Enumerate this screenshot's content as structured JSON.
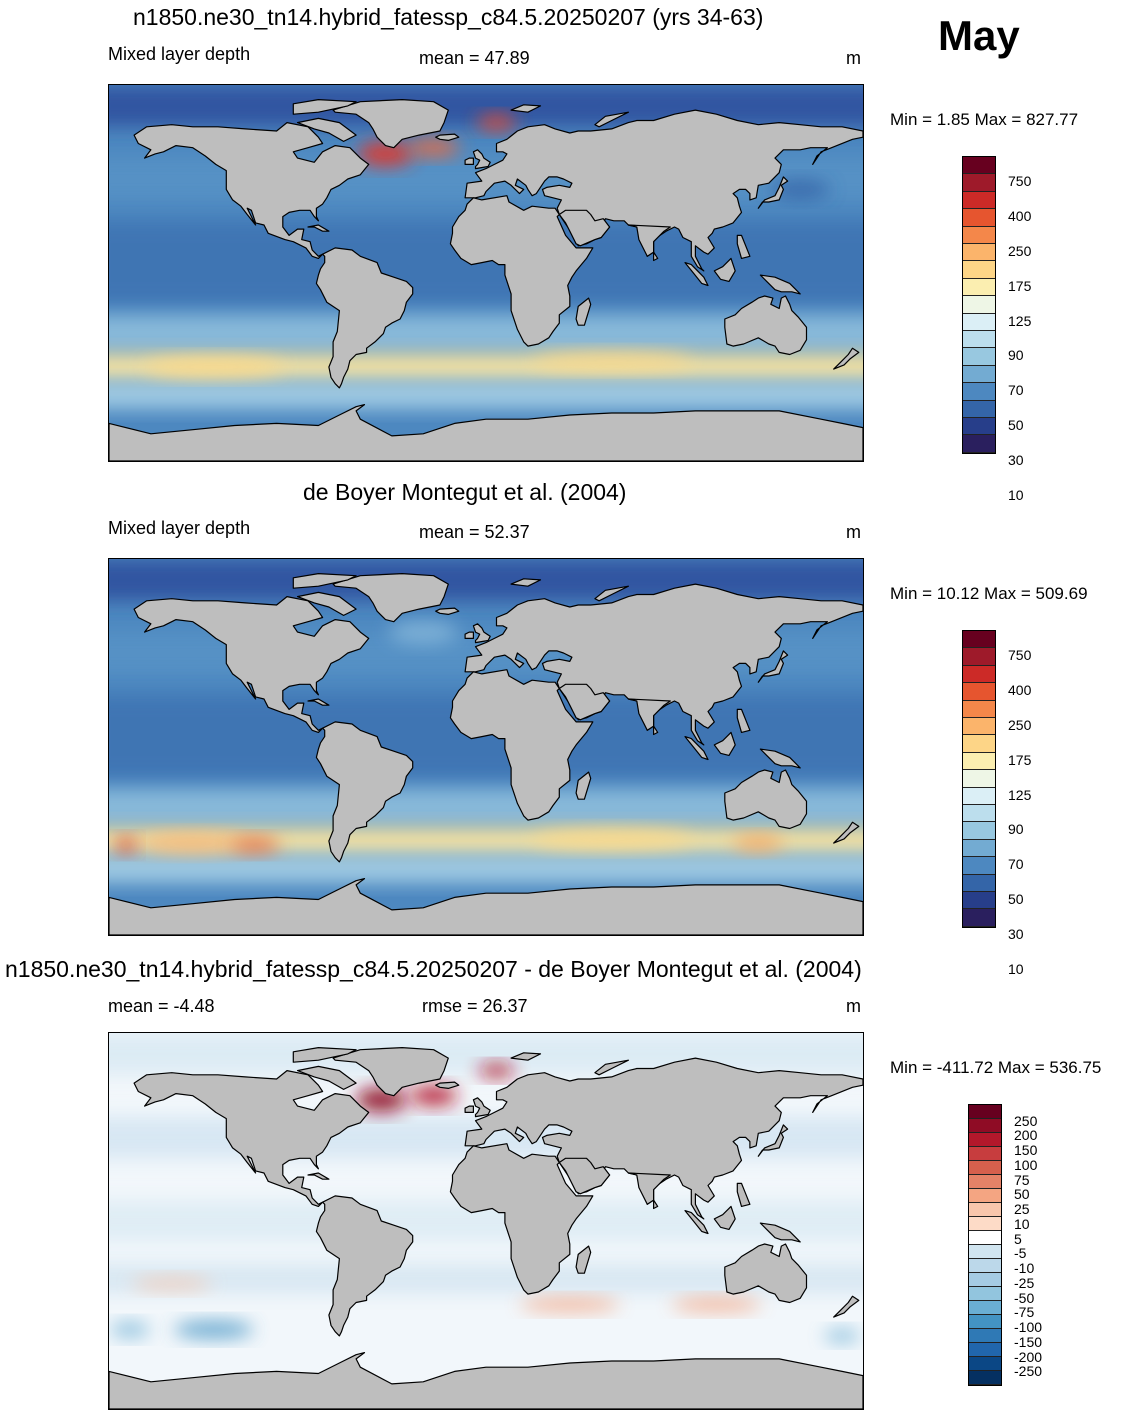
{
  "month": "May",
  "panels": [
    {
      "title": "n1850.ne30_tn14.hybrid_fatessp_c84.5.20250207 (yrs 34-63)",
      "left_label": "Mixed layer depth",
      "center_label": "mean =  47.89",
      "units": "m",
      "minmax": "Min =   1.85 Max = 827.77",
      "scale": "mld",
      "variant": "model"
    },
    {
      "title": "de Boyer Montegut et al. (2004)",
      "left_label": "Mixed layer depth",
      "center_label": "mean =  52.37",
      "units": "m",
      "minmax": "Min =  10.12 Max = 509.69",
      "scale": "mld",
      "variant": "obs"
    },
    {
      "title": "n1850.ne30_tn14.hybrid_fatessp_c84.5.20250207 - de Boyer Montegut et al. (2004)",
      "left_label": "mean =  -4.48",
      "center_label": "rmse =  26.37",
      "units": "m",
      "minmax": "Min = -411.72 Max = 536.75",
      "scale": "diff",
      "variant": "diff"
    }
  ],
  "colorbars": {
    "mld": {
      "labels": [
        "750",
        "400",
        "250",
        "175",
        "125",
        "90",
        "70",
        "50",
        "30",
        "10"
      ],
      "colors": [
        "#67001f",
        "#9e1a2a",
        "#cc2a27",
        "#e6552f",
        "#f4874a",
        "#fbb46b",
        "#fdd587",
        "#fbeeb0",
        "#eef6e6",
        "#dbeff6",
        "#bcdeed",
        "#98c8e0",
        "#73abd2",
        "#4d88c0",
        "#3465a8",
        "#273e8a",
        "#2a1f5e"
      ]
    },
    "diff": {
      "labels": [
        "250",
        "200",
        "150",
        "100",
        "75",
        "50",
        "25",
        "10",
        "5",
        "-5",
        "-10",
        "-25",
        "-50",
        "-75",
        "-100",
        "-150",
        "-200",
        "-250"
      ],
      "colors": [
        "#67001f",
        "#8f0c25",
        "#b2182b",
        "#c73d3e",
        "#d6604d",
        "#e58267",
        "#f4a582",
        "#f8c6ac",
        "#fddbc7",
        "#ffffff",
        "#d1e5f0",
        "#bcd8ea",
        "#a5cbe3",
        "#92c5de",
        "#6aaed3",
        "#4393c3",
        "#2f79b5",
        "#2166ac",
        "#0b4785",
        "#053061"
      ]
    }
  },
  "map_colors": {
    "land": "#bebebe",
    "coast": "#000000"
  }
}
